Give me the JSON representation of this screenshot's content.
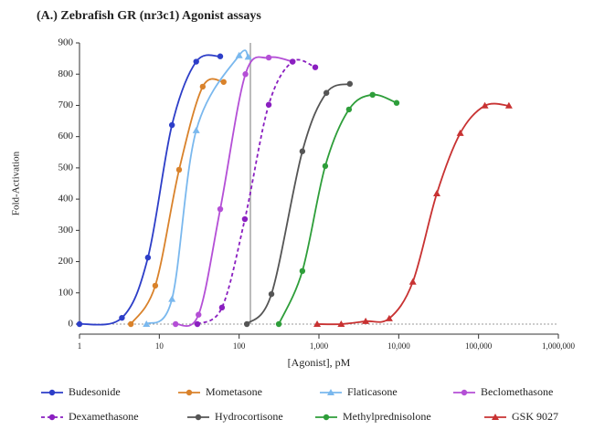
{
  "chart_data": {
    "type": "line",
    "title": "(A.) Zebrafish GR (nr3c1) Agonist assays",
    "xlabel": "[Agonist], pM",
    "ylabel": "Fold-Activation",
    "log_x": true,
    "xlim": [
      1,
      1000000
    ],
    "xticks": [
      1,
      10,
      100,
      {
        "value": 1000,
        "label": "1,000"
      },
      {
        "value": 10000,
        "label": "10,000"
      },
      {
        "value": 100000,
        "label": "100,000"
      },
      {
        "value": 1000000,
        "label": "1,000,000"
      }
    ],
    "ylim": [
      0,
      900
    ],
    "yticks": [
      0,
      100,
      200,
      300,
      400,
      500,
      600,
      700,
      800,
      900
    ],
    "series": [
      {
        "name": "Budesonide",
        "color": "#2d3ec8",
        "marker": "circle",
        "x": [
          1,
          3.4,
          7.2,
          14.4,
          29,
          58
        ],
        "values": [
          0,
          20,
          213,
          637,
          840,
          857
        ]
      },
      {
        "name": "Mometasone",
        "color": "#d9822b",
        "marker": "circle",
        "x": [
          4.4,
          8.9,
          17.7,
          35,
          64
        ],
        "values": [
          0,
          123,
          494,
          760,
          775
        ]
      },
      {
        "name": "Flaticasone",
        "color": "#7ab8ee",
        "marker": "triangle",
        "x": [
          6.9,
          14.4,
          29,
          100,
          130
        ],
        "values": [
          0,
          80,
          620,
          860,
          855
        ]
      },
      {
        "name": "Beclomethasone",
        "color": "#b44fd6",
        "marker": "circle",
        "x": [
          16,
          31,
          58,
          120,
          235,
          470
        ],
        "values": [
          0,
          30,
          368,
          800,
          853,
          840
        ]
      },
      {
        "name": "Dexamethasone",
        "color": "#8a1fc0",
        "marker": "circle",
        "dash": true,
        "x": [
          30,
          61,
          118,
          235,
          466,
          900
        ],
        "values": [
          0,
          53,
          336,
          702,
          840,
          822
        ]
      },
      {
        "name": "Hydrocortisone",
        "color": "#555555",
        "marker": "circle",
        "x": [
          125,
          254,
          620,
          1240,
          2440
        ],
        "values": [
          0,
          96,
          553,
          740,
          769
        ]
      },
      {
        "name": "Methylprednisolone",
        "color": "#2e9e3a",
        "marker": "circle",
        "x": [
          314,
          620,
          1200,
          2380,
          4700,
          9400
        ],
        "values": [
          0,
          170,
          506,
          687,
          734,
          708
        ]
      },
      {
        "name": "GSK 9027",
        "color": "#c83232",
        "marker": "triangle",
        "x": [
          950,
          1900,
          3850,
          7600,
          15000,
          30000,
          59000,
          120000,
          240000
        ],
        "values": [
          0,
          0,
          9,
          18,
          135,
          418,
          611,
          699,
          699
        ]
      }
    ]
  }
}
